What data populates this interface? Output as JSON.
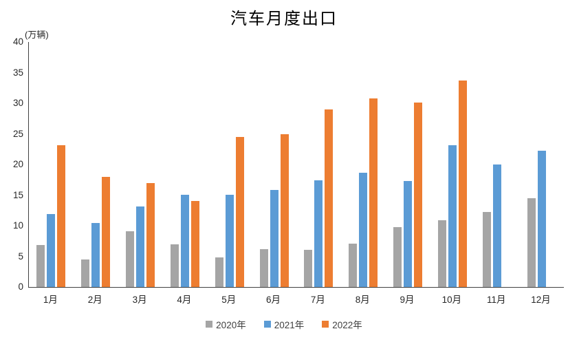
{
  "chart_data": {
    "type": "bar",
    "title": "汽车月度出口",
    "unit_label": "(万辆)",
    "categories": [
      "1月",
      "2月",
      "3月",
      "4月",
      "5月",
      "6月",
      "7月",
      "8月",
      "9月",
      "10月",
      "11月",
      "12月"
    ],
    "series": [
      {
        "name": "2020年",
        "color": "#A5A5A5",
        "values": [
          6.8,
          4.5,
          9.1,
          7.0,
          4.8,
          6.2,
          6.1,
          7.1,
          9.8,
          10.9,
          12.2,
          14.5
        ]
      },
      {
        "name": "2021年",
        "color": "#5B9BD5",
        "values": [
          11.9,
          10.5,
          13.2,
          15.1,
          15.1,
          15.8,
          17.4,
          18.7,
          17.3,
          23.1,
          20.0,
          22.3
        ]
      },
      {
        "name": "2022年",
        "color": "#ED7D31",
        "values": [
          23.1,
          18.0,
          17.0,
          14.1,
          24.5,
          24.9,
          29.0,
          30.8,
          30.1,
          33.7,
          null,
          null
        ]
      }
    ],
    "ylim": [
      0,
      40
    ],
    "yticks": [
      0,
      5,
      10,
      15,
      20,
      25,
      30,
      35,
      40
    ],
    "grid": false,
    "legend_position": "bottom",
    "background": "#FFFFFF"
  }
}
